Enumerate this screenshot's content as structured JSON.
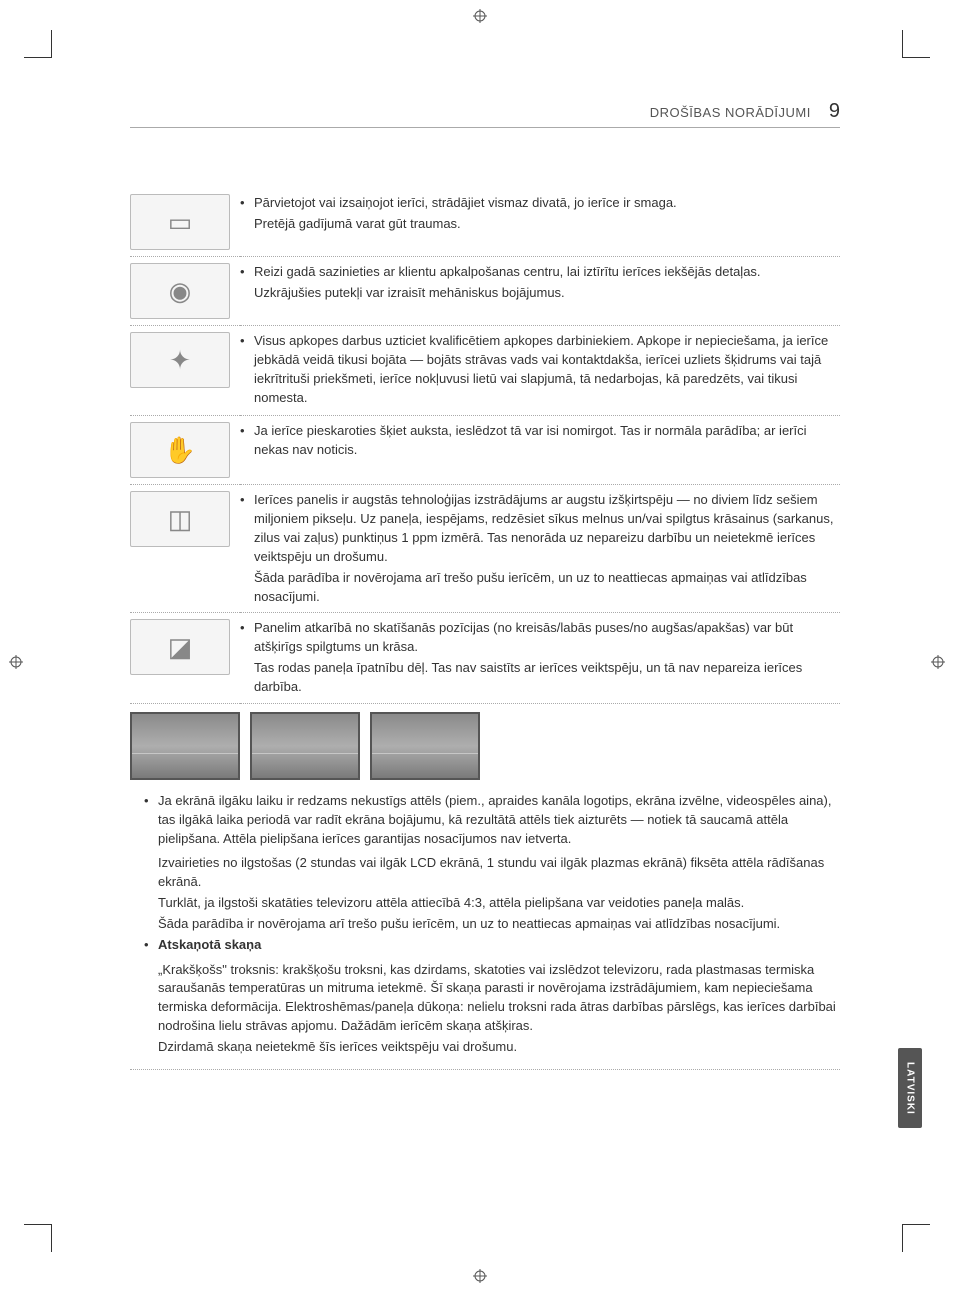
{
  "header": {
    "title": "DROŠĪBAS NORĀDĪJUMI",
    "page_number": "9"
  },
  "rows": [
    {
      "icon": "two-people-carry-tv-icon",
      "glyph": "▭",
      "bullet": "Pārvietojot vai izsaiņojot ierīci, strādājiet vismaz divatā, jo ierīce ir smaga.",
      "extra": [
        "Pretējā gadījumā varat gūt traumas."
      ]
    },
    {
      "icon": "tv-dust-icon",
      "glyph": "◉",
      "bullet": "Reizi gadā sazinieties ar klientu apkalpošanas centru, lai iztīrītu ierīces iekšējās detaļas.",
      "extra": [
        "Uzkrājušies putekļi var izraisīt mehāniskus bojājumus."
      ]
    },
    {
      "icon": "tv-service-person-icon",
      "glyph": "✦",
      "bullet": "Visus apkopes darbus uzticiet kvalificētiem apkopes darbiniekiem. Apkope ir nepieciešama, ja ierīce jebkādā veidā tikusi bojāta — bojāts strāvas vads vai kontaktdakša, ierīcei uzliets šķidrums vai tajā iekrītrituši priekšmeti, ierīce nokļuvusi lietū vai slapjumā, tā nedarbojas, kā paredzēts, vai tikusi nomesta.",
      "extra": []
    },
    {
      "icon": "tv-hand-touch-icon",
      "glyph": "✋",
      "bullet": "Ja ierīce pieskaroties šķiet auksta, ieslēdzot tā var isi nomirgot. Tas ir normāla parādība; ar ierīci nekas nav noticis.",
      "extra": []
    },
    {
      "icon": "tv-pixels-icon",
      "glyph": "◫",
      "bullet": "Ierīces panelis ir augstās tehnoloģijas izstrādājums ar augstu izšķirtspēju — no diviem līdz sešiem miljoniem pikseļu. Uz paneļa, iespējams, redzēsiet sīkus melnus un/vai spilgtus krāsainus (sarkanus, zilus vai zaļus) punktiņus 1 ppm izmērā. Tas nenorāda uz nepareizu darbību un neietekmē ierīces veiktspēju un drošumu.",
      "extra": [
        "Šāda parādība ir novērojama arī trešo pušu ierīcēm, un uz to neattiecas apmaiņas vai atlīdzības nosacījumi."
      ]
    },
    {
      "icon": "tv-angle-icon",
      "glyph": "◪",
      "bullet": "Panelim atkarībā no skatīšanās pozīcijas (no kreisās/labās puses/no augšas/apakšas) var būt atšķirīgs spilgtums un krāsa.",
      "extra": [
        "Tas rodas paneļa īpatnību dēļ. Tas nav saistīts ar ierīces veiktspēju, un tā nav nepareiza ierīces darbība."
      ]
    }
  ],
  "lower": {
    "item1_bullet": "Ja ekrānā ilgāku laiku ir redzams nekustīgs attēls (piem., apraides kanāla logotips, ekrāna izvēlne, videospēles aina), tas ilgākā laika periodā var radīt ekrāna bojājumu, kā rezultātā attēls tiek aizturēts — notiek tā saucamā attēla pielipšana. Attēla pielipšana ierīces garantijas nosacījumos nav ietverta.",
    "item1_cont": [
      "Izvairieties no ilgstošas (2 stundas vai ilgāk LCD ekrānā, 1 stundu vai ilgāk plazmas ekrānā) fiksēta attēla rādīšanas ekrānā.",
      "Turklāt, ja ilgstoši skatāties televizoru attēla attiecībā 4:3, attēla pielipšana var veidoties paneļa malās.",
      "Šāda parādība ir novērojama arī trešo pušu ierīcēm, un uz to neattiecas apmaiņas vai atlīdzības nosacījumi."
    ],
    "item2_title": "Atskaņotā skaņa",
    "item2_body": "„Krakšķošs\" troksnis: krakšķošu troksni, kas dzirdams, skatoties vai izslēdzot televizoru, rada plastmasas termiska saraušanās temperatūras un mitruma ietekmē. Šī skaņa parasti ir novērojama izstrādājumiem, kam nepieciešama termiska deformācija. Elektroshēmas/paneļa dūkoņa: nelielu troksni rada ātras darbības pārslēgs, kas ierīces darbībai nodrošina lielu strāvas apjomu. Dažādām ierīcēm skaņa atšķiras.",
    "item2_foot": "Dzirdamā skaņa neietekmē šīs ierīces veiktspēju vai drošumu."
  },
  "lang_tab": "LATVISKI",
  "colors": {
    "text": "#333333",
    "border": "#aaaaaa",
    "tab_bg": "#555555",
    "tab_fg": "#ffffff",
    "icon_bg": "#f5f5f5"
  }
}
